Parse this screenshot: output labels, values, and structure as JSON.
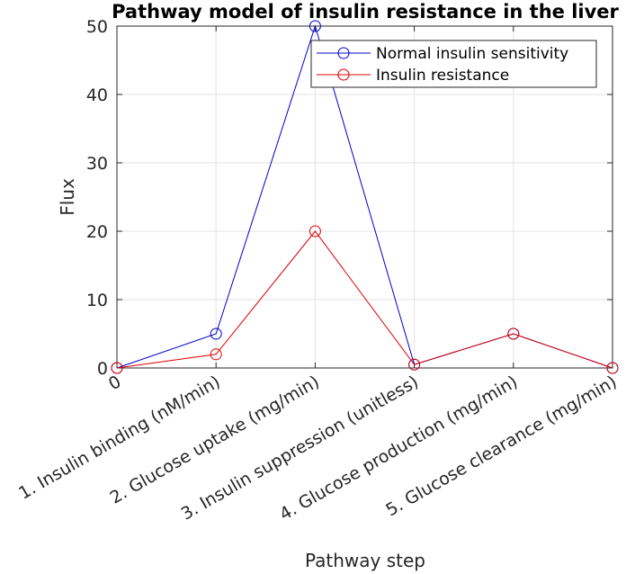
{
  "chart_data": {
    "type": "line",
    "title": "Pathway model of insulin resistance in the liver",
    "xlabel": "Pathway step",
    "ylabel": "Flux",
    "categories": [
      "0",
      "1. Insulin binding (nM/min)",
      "2. Glucose uptake (mg/min)",
      "3. Insulin suppression (unitless)",
      "4. Glucose production (mg/min)",
      "5. Glucose clearance (mg/min)"
    ],
    "ylim": [
      0,
      50
    ],
    "yticks": [
      0,
      10,
      20,
      30,
      40,
      50
    ],
    "grid": true,
    "legend_position": "top-right",
    "series": [
      {
        "name": "Normal insulin sensitivity",
        "color": "#0000cc",
        "marker": "circle",
        "values": [
          0,
          5,
          50,
          0.5,
          5,
          0
        ]
      },
      {
        "name": "Insulin resistance",
        "color": "#dd0000",
        "marker": "circle",
        "values": [
          0,
          2,
          20,
          0.5,
          5,
          0
        ]
      }
    ]
  }
}
